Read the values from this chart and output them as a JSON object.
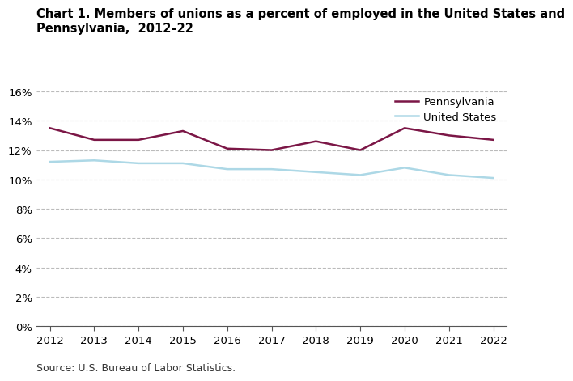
{
  "title_line1": "Chart 1. Members of unions as a percent of employed in the United States and",
  "title_line2": "Pennsylvania,  2012–22",
  "years": [
    2012,
    2013,
    2014,
    2015,
    2016,
    2017,
    2018,
    2019,
    2020,
    2021,
    2022
  ],
  "pennsylvania": [
    13.5,
    12.7,
    12.7,
    13.3,
    12.1,
    12.0,
    12.6,
    12.0,
    13.5,
    13.0,
    12.7
  ],
  "united_states": [
    11.2,
    11.3,
    11.1,
    11.1,
    10.7,
    10.7,
    10.5,
    10.3,
    10.8,
    10.3,
    10.1
  ],
  "pa_color": "#7b1646",
  "us_color": "#add8e6",
  "pa_label": "Pennsylvania",
  "us_label": "United States",
  "ylim": [
    0,
    16
  ],
  "yticks": [
    0,
    2,
    4,
    6,
    8,
    10,
    12,
    14,
    16
  ],
  "grid_color": "#bbbbbb",
  "grid_style": "--",
  "source_text": "Source: U.S. Bureau of Labor Statistics.",
  "line_width": 1.8,
  "background_color": "#ffffff",
  "title_fontsize": 10.5,
  "tick_fontsize": 9.5,
  "legend_fontsize": 9.5
}
